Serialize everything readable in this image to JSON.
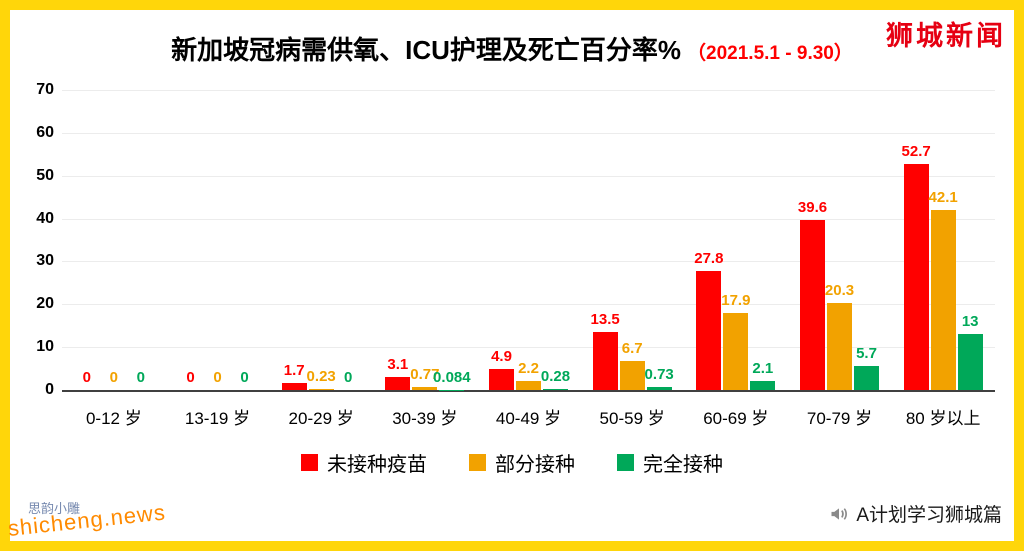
{
  "page": {
    "brand_top_right": "狮城新闻",
    "watermark_bottom_left": "shicheng.news",
    "watermark_seal": "思韵小雕",
    "account_bottom_right": "A计划学习狮城篇"
  },
  "chart_data": {
    "type": "bar",
    "title": "新加坡冠病需供氧、ICU护理及死亡百分率%",
    "subtitle": "（2021.5.1 - 9.30）",
    "categories": [
      "0-12 岁",
      "13-19 岁",
      "20-29 岁",
      "30-39 岁",
      "40-49 岁",
      "50-59 岁",
      "60-69 岁",
      "70-79 岁",
      "80 岁以上"
    ],
    "series": [
      {
        "name": "未接种疫苗",
        "color": "#ff0000",
        "values": [
          0,
          0,
          1.7,
          3.1,
          4.9,
          13.5,
          27.8,
          39.6,
          52.7
        ],
        "labels": [
          "0",
          "0",
          "1.7",
          "3.1",
          "4.9",
          "13.5",
          "27.8",
          "39.6",
          "52.7"
        ]
      },
      {
        "name": "部分接种",
        "color": "#f2a200",
        "values": [
          0,
          0,
          0.23,
          0.77,
          2.2,
          6.7,
          17.9,
          20.3,
          42.1
        ],
        "labels": [
          "0",
          "0",
          "0.23",
          "0.77",
          "2.2",
          "6.7",
          "17.9",
          "20.3",
          "42.1"
        ]
      },
      {
        "name": "完全接种",
        "color": "#00a859",
        "values": [
          0,
          0,
          0,
          0.084,
          0.28,
          0.73,
          2.1,
          5.7,
          13
        ],
        "labels": [
          "0",
          "0",
          "0",
          "0.084",
          "0.28",
          "0.73",
          "2.1",
          "5.7",
          "13"
        ]
      }
    ],
    "ylim": [
      0,
      70
    ],
    "yticks": [
      0,
      10,
      20,
      30,
      40,
      50,
      60,
      70
    ],
    "grid": true,
    "legend_position": "bottom"
  }
}
